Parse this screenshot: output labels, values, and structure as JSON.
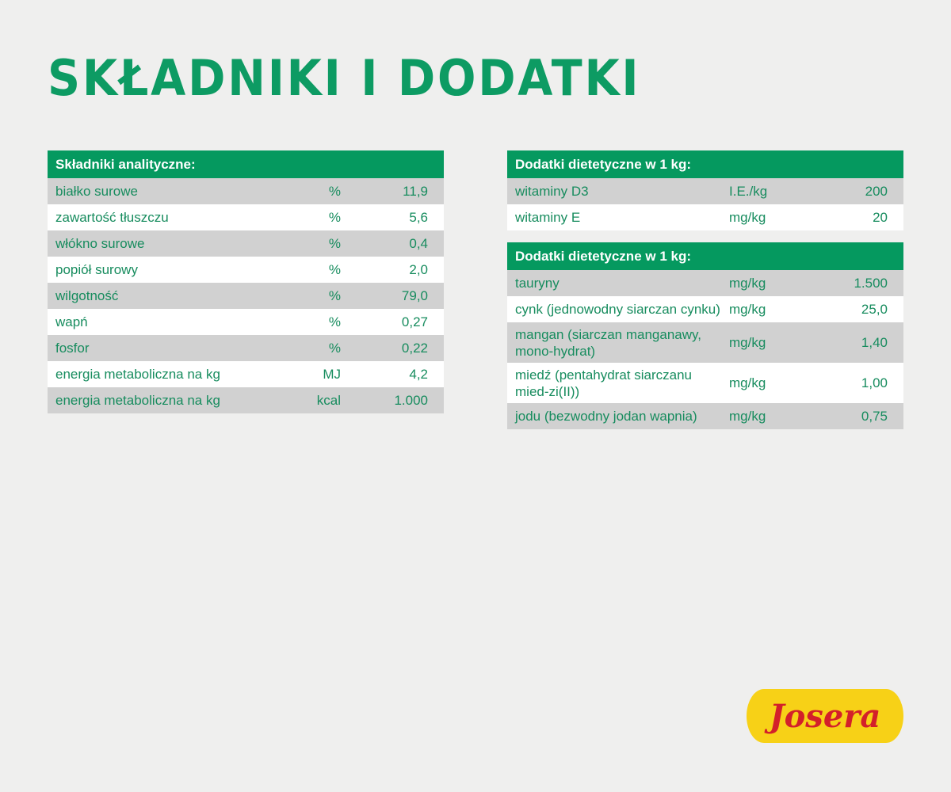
{
  "title": "SKŁADNIKI I DODATKI",
  "analytic": {
    "header": "Składniki analityczne:",
    "rows": [
      {
        "name": "białko surowe",
        "unit": "%",
        "value": "11,9"
      },
      {
        "name": "zawartość tłuszczu",
        "unit": "%",
        "value": "5,6"
      },
      {
        "name": "włókno surowe",
        "unit": "%",
        "value": "0,4"
      },
      {
        "name": "popiół surowy",
        "unit": "%",
        "value": "2,0"
      },
      {
        "name": "wilgotność",
        "unit": "%",
        "value": "79,0"
      },
      {
        "name": "wapń",
        "unit": "%",
        "value": "0,27"
      },
      {
        "name": "fosfor",
        "unit": "%",
        "value": "0,22"
      },
      {
        "name": "energia metaboliczna na kg",
        "unit": "MJ",
        "value": "4,2"
      },
      {
        "name": "energia metaboliczna na kg",
        "unit": "kcal",
        "value": "1.000"
      }
    ]
  },
  "additives1": {
    "header": "Dodatki dietetyczne w 1 kg:",
    "rows": [
      {
        "name": "witaminy D3",
        "unit": "I.E./kg",
        "value": "200"
      },
      {
        "name": "witaminy E",
        "unit": "mg/kg",
        "value": "20"
      }
    ]
  },
  "additives2": {
    "header": "Dodatki dietetyczne w 1 kg:",
    "rows": [
      {
        "name": "tauryny",
        "unit": "mg/kg",
        "value": "1.500"
      },
      {
        "name": "cynk (jednowodny siarczan cynku)",
        "unit": "mg/kg",
        "value": "25,0"
      },
      {
        "name": "mangan (siarczan manganawy, mono-hydrat)",
        "unit": "mg/kg",
        "value": "1,40"
      },
      {
        "name": "miedź (pentahydrat siarczanu mied-zi(II))",
        "unit": "mg/kg",
        "value": "1,00"
      },
      {
        "name": "jodu (bezwodny jodan wapnia)",
        "unit": "mg/kg",
        "value": "0,75"
      }
    ]
  },
  "logo": {
    "text": "Josera",
    "background": "#f7d117",
    "color": "#d3202a"
  },
  "colors": {
    "green": "#05995f",
    "text": "#178c5e",
    "stripe": "#d1d1d1"
  }
}
